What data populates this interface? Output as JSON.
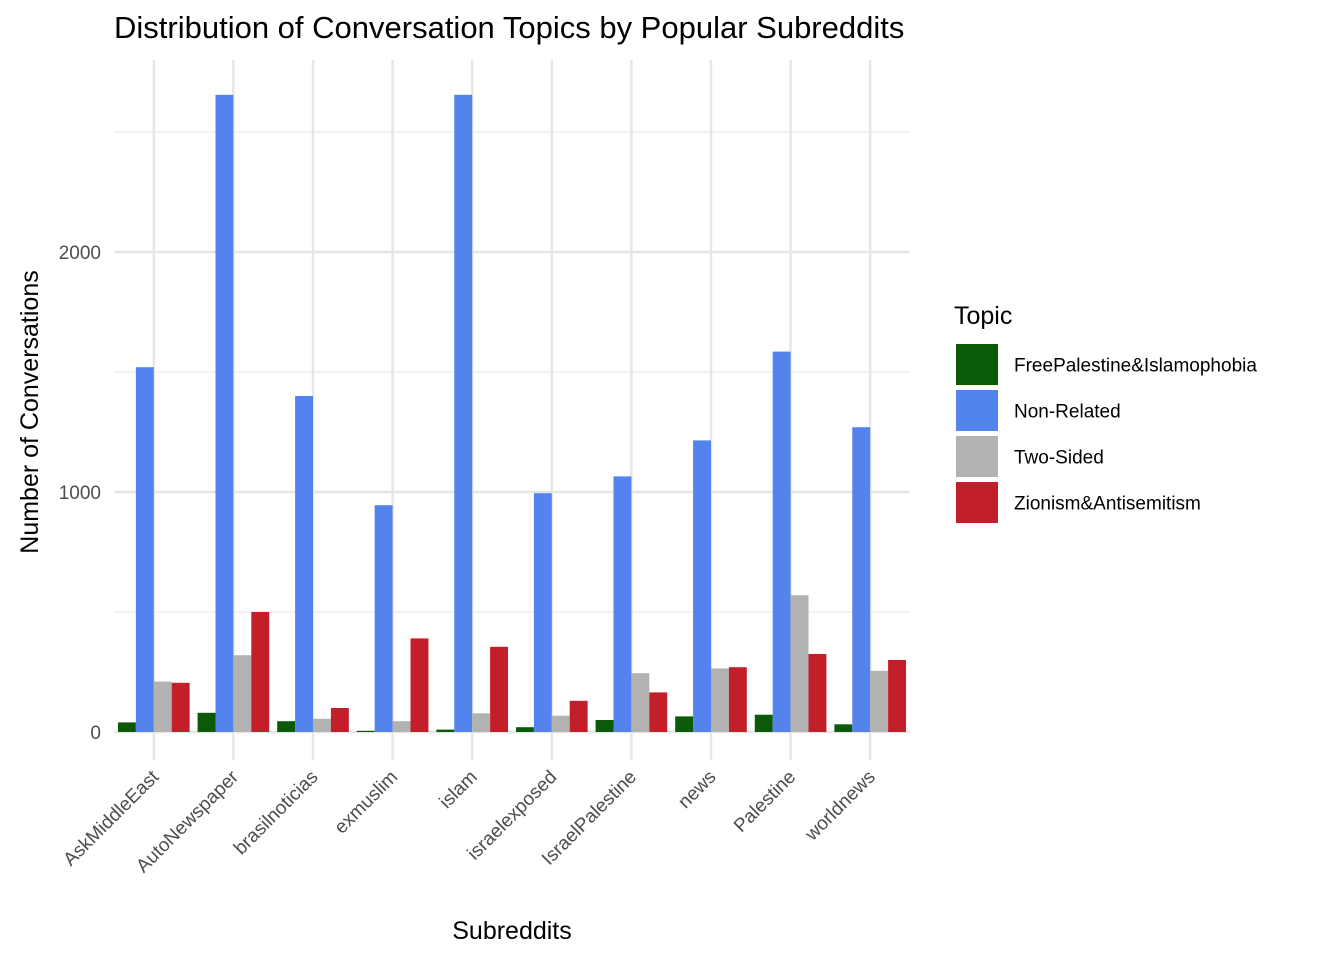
{
  "chart_data": {
    "type": "bar",
    "title": "Distribution of Conversation Topics by Popular Subreddits",
    "xlabel": "Subreddits",
    "ylabel": "Number of Conversations",
    "ylim": [
      -115,
      2785
    ],
    "yticks": [
      0,
      1000,
      2000
    ],
    "yticks_minor": [
      500,
      1500,
      2500
    ],
    "grid": true,
    "legend_position": "right",
    "legend_title": "Topic",
    "categories": [
      "AskMiddleEast",
      "AutoNewspaper",
      "brasilnoticias",
      "exmuslim",
      "islam",
      "israelexposed",
      "IsraelPalestine",
      "news",
      "Palestine",
      "worldnews"
    ],
    "series": [
      {
        "name": "FreePalestine&Islamophobia",
        "color": "#0B5A08",
        "values": [
          40,
          80,
          45,
          5,
          10,
          20,
          50,
          65,
          72,
          32
        ]
      },
      {
        "name": "Non-Related",
        "color": "#5383EC",
        "values": [
          1520,
          2655,
          1400,
          945,
          2655,
          995,
          1065,
          1215,
          1585,
          1270
        ]
      },
      {
        "name": "Two-Sided",
        "color": "#B2B2B2",
        "values": [
          210,
          320,
          55,
          45,
          78,
          68,
          245,
          265,
          570,
          255
        ]
      },
      {
        "name": "Zionism&Antisemitism",
        "color": "#C21F2A",
        "values": [
          205,
          500,
          100,
          390,
          355,
          130,
          165,
          270,
          325,
          300
        ]
      }
    ]
  }
}
